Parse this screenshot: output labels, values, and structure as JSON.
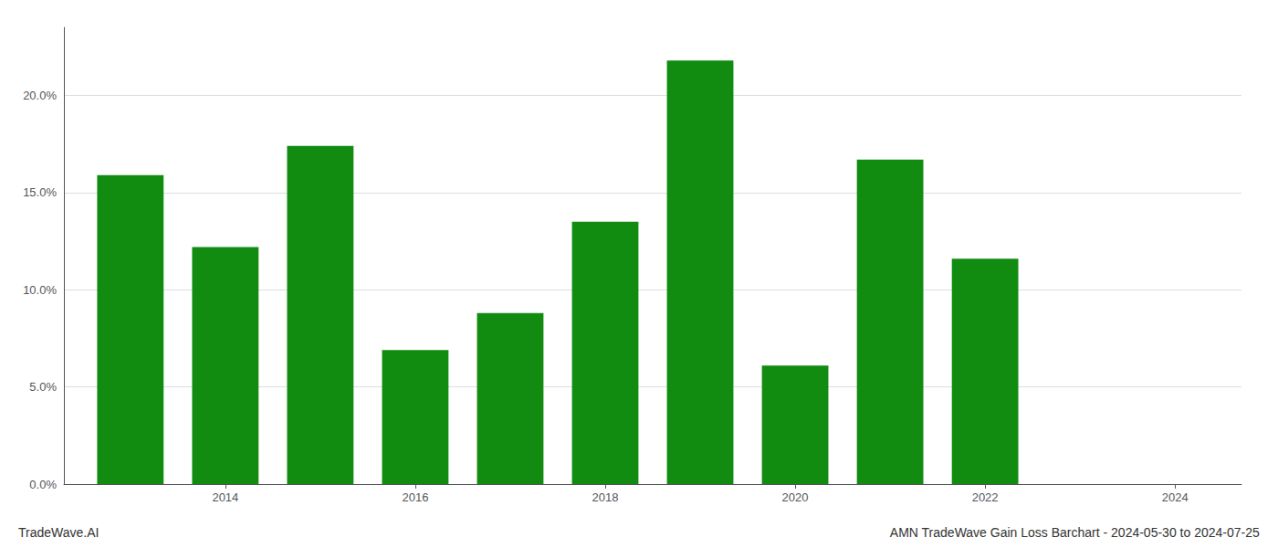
{
  "chart_data": {
    "type": "bar",
    "title": "AMN TradeWave Gain Loss Barchart - 2024-05-30 to 2024-07-25",
    "annotations": [
      "TradeWave.AI"
    ],
    "x": [
      2013,
      2014,
      2015,
      2016,
      2017,
      2018,
      2019,
      2020,
      2021,
      2022
    ],
    "values": [
      0.159,
      0.122,
      0.174,
      0.069,
      0.088,
      0.135,
      0.218,
      0.061,
      0.167,
      0.116
    ],
    "color": "#118c11",
    "xlim": [
      2012.3,
      2024.7
    ],
    "xticks": [
      2014,
      2016,
      2018,
      2020,
      2022,
      2024
    ],
    "ylim": [
      0,
      0.235
    ],
    "yticks": [
      {
        "value": 0.0,
        "label": "0.0%"
      },
      {
        "value": 0.05,
        "label": "5.0%"
      },
      {
        "value": 0.1,
        "label": "10.0%"
      },
      {
        "value": 0.15,
        "label": "15.0%"
      },
      {
        "value": 0.2,
        "label": "20.0%"
      }
    ],
    "grid": true
  }
}
